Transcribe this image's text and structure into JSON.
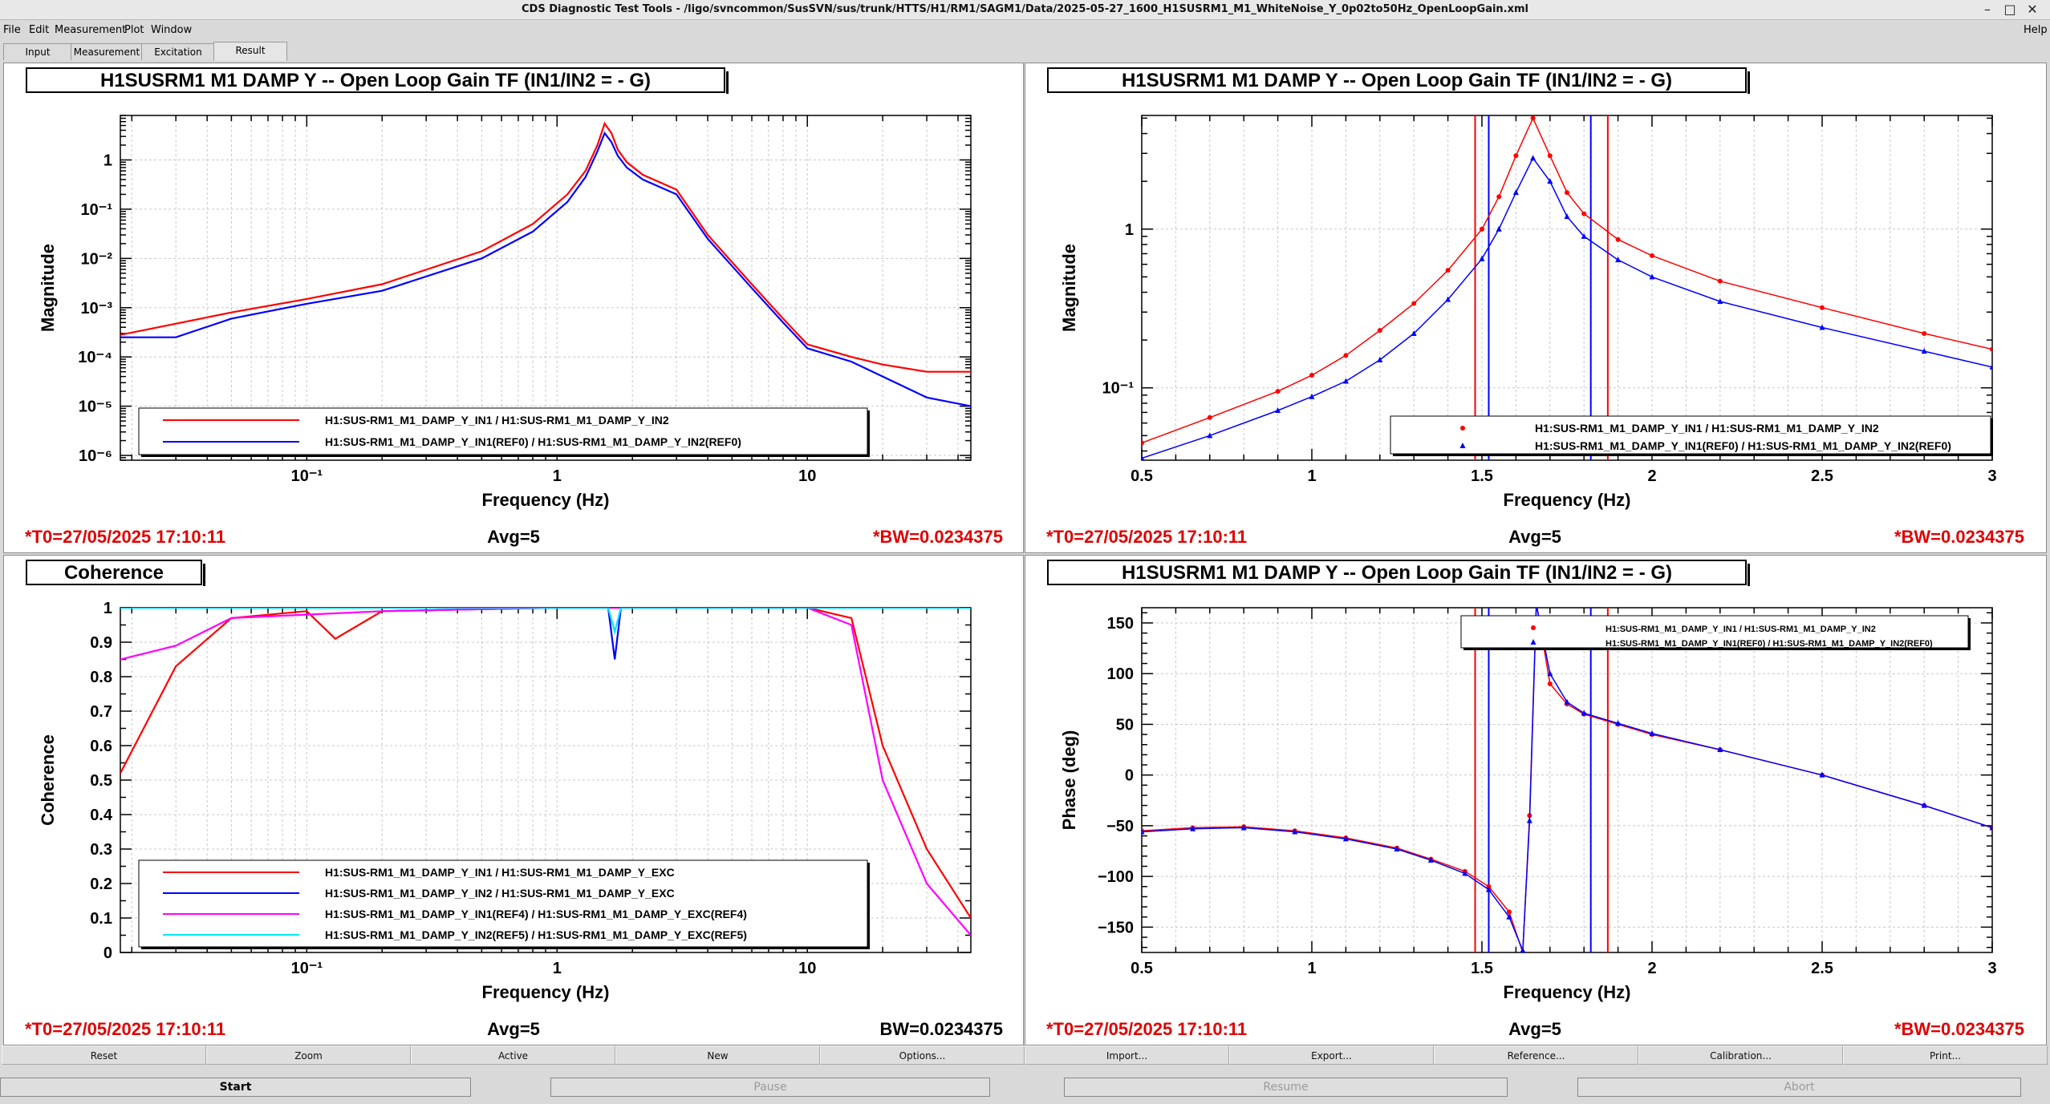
{
  "window": {
    "title": "CDS Diagnostic Test Tools - /ligo/svncommon/SusSVN/sus/trunk/HTTS/H1/RM1/SAGM1/Data/2025-05-27_1600_H1SUSRM1_M1_WhiteNoise_Y_0p02to50Hz_OpenLoopGain.xml",
    "menu_file": "File",
    "menu_edit": "Edit",
    "menu_measurement": "Measurement",
    "menu_plot": "Plot",
    "menu_window": "Window",
    "menu_help": "Help",
    "tab_input": "Input",
    "tab_measurement": "Measurement",
    "tab_excitation": "Excitation",
    "tab_result": "Result"
  },
  "buttons": {
    "reset": "Reset",
    "zoom": "Zoom",
    "active": "Active",
    "new": "New",
    "options": "Options...",
    "import": "Import...",
    "export": "Export...",
    "reference": "Reference...",
    "calibration": "Calibration...",
    "print": "Print...",
    "start": "Start",
    "pause": "Pause",
    "resume": "Resume",
    "abort": "Abort"
  },
  "colors": {
    "red": "#ff0000",
    "blue": "#0000ff",
    "magenta": "#ff00ff",
    "cyan": "#00e6ff",
    "stamp_red": "#e00000"
  },
  "panels": [
    {
      "title": "H1SUSRM1 M1 DAMP Y -- Open Loop Gain TF (IN1/IN2 = - G)",
      "ylabel": "Magnitude",
      "xlabel": "Frequency (Hz)",
      "xticks": [
        "10⁻¹",
        "1",
        "10"
      ],
      "yticks": [
        "1",
        "10⁻¹",
        "10⁻²",
        "10⁻³",
        "10⁻⁴",
        "10⁻⁵",
        "10⁻⁶"
      ],
      "legend": [
        "H1:SUS-RM1_M1_DAMP_Y_IN1 / H1:SUS-RM1_M1_DAMP_Y_IN2",
        "H1:SUS-RM1_M1_DAMP_Y_IN1(REF0) / H1:SUS-RM1_M1_DAMP_Y_IN2(REF0)"
      ],
      "t0": "*T0=27/05/2025 17:10:11",
      "avg": "Avg=5",
      "bw": "*BW=0.0234375"
    },
    {
      "title": "H1SUSRM1 M1 DAMP Y -- Open Loop Gain TF (IN1/IN2 = - G)",
      "ylabel": "Magnitude",
      "xlabel": "Frequency (Hz)",
      "xticks": [
        "0.5",
        "1",
        "1.5",
        "2",
        "2.5",
        "3"
      ],
      "yticks": [
        "1",
        "10⁻¹"
      ],
      "legend": [
        "H1:SUS-RM1_M1_DAMP_Y_IN1 / H1:SUS-RM1_M1_DAMP_Y_IN2",
        "H1:SUS-RM1_M1_DAMP_Y_IN1(REF0) / H1:SUS-RM1_M1_DAMP_Y_IN2(REF0)"
      ],
      "t0": "*T0=27/05/2025 17:10:11",
      "avg": "Avg=5",
      "bw": "*BW=0.0234375"
    },
    {
      "title": "Coherence",
      "ylabel": "Coherence",
      "xlabel": "Frequency (Hz)",
      "xticks": [
        "10⁻¹",
        "1",
        "10"
      ],
      "yticks": [
        "1",
        "0.9",
        "0.8",
        "0.7",
        "0.6",
        "0.5",
        "0.4",
        "0.3",
        "0.2",
        "0.1",
        "0"
      ],
      "legend": [
        "H1:SUS-RM1_M1_DAMP_Y_IN1 / H1:SUS-RM1_M1_DAMP_Y_EXC",
        "H1:SUS-RM1_M1_DAMP_Y_IN2 / H1:SUS-RM1_M1_DAMP_Y_EXC",
        "H1:SUS-RM1_M1_DAMP_Y_IN1(REF4) / H1:SUS-RM1_M1_DAMP_Y_EXC(REF4)",
        "H1:SUS-RM1_M1_DAMP_Y_IN2(REF5) / H1:SUS-RM1_M1_DAMP_Y_EXC(REF5)"
      ],
      "t0": "*T0=27/05/2025 17:10:11",
      "avg": "Avg=5",
      "bw": "BW=0.0234375"
    },
    {
      "title": "H1SUSRM1 M1 DAMP Y -- Open Loop Gain TF (IN1/IN2 = - G)",
      "ylabel": "Phase (deg)",
      "xlabel": "Frequency (Hz)",
      "xticks": [
        "0.5",
        "1",
        "1.5",
        "2",
        "2.5",
        "3"
      ],
      "yticks": [
        "150",
        "100",
        "50",
        "0",
        "−50",
        "−100",
        "−150"
      ],
      "legend": [
        "H1:SUS-RM1_M1_DAMP_Y_IN1 / H1:SUS-RM1_M1_DAMP_Y_IN2",
        "H1:SUS-RM1_M1_DAMP_Y_IN1(REF0) / H1:SUS-RM1_M1_DAMP_Y_IN2(REF0)"
      ],
      "t0": "*T0=27/05/2025 17:10:11",
      "avg": "Avg=5",
      "bw": "*BW=0.0234375"
    }
  ],
  "chart_data": [
    {
      "type": "line",
      "xscale": "log",
      "yscale": "log",
      "title": "H1SUSRM1 M1 DAMP Y -- Open Loop Gain TF (IN1/IN2 = - G)",
      "xlabel": "Frequency (Hz)",
      "ylabel": "Magnitude",
      "xlim": [
        0.018,
        45
      ],
      "ylim": [
        8e-07,
        8
      ],
      "grid": true,
      "legend_position": "bottom-left",
      "series": [
        {
          "name": "H1:SUS-RM1_M1_DAMP_Y_IN1 / H1:SUS-RM1_M1_DAMP_Y_IN2",
          "color": "#ff0000",
          "x": [
            0.018,
            0.05,
            0.1,
            0.2,
            0.5,
            0.8,
            1.1,
            1.3,
            1.45,
            1.55,
            1.65,
            1.75,
            1.9,
            2.2,
            3,
            4,
            6,
            8,
            10,
            15,
            20,
            30,
            45
          ],
          "y": [
            0.00028,
            0.0008,
            0.0015,
            0.003,
            0.014,
            0.05,
            0.2,
            0.6,
            2.0,
            5.5,
            3.5,
            1.6,
            0.9,
            0.5,
            0.25,
            0.03,
            0.003,
            0.0006,
            0.00018,
            0.0001,
            7e-05,
            5e-05,
            5e-05
          ]
        },
        {
          "name": "H1:SUS-RM1_M1_DAMP_Y_IN1(REF0) / H1:SUS-RM1_M1_DAMP_Y_IN2(REF0)",
          "color": "#0000ff",
          "x": [
            0.018,
            0.03,
            0.05,
            0.1,
            0.2,
            0.5,
            0.8,
            1.1,
            1.3,
            1.45,
            1.55,
            1.65,
            1.75,
            1.9,
            2.2,
            3,
            4,
            6,
            8,
            10,
            15,
            20,
            30,
            45
          ],
          "y": [
            0.00025,
            0.00025,
            0.0006,
            0.0012,
            0.0022,
            0.01,
            0.035,
            0.14,
            0.45,
            1.5,
            3.5,
            2.3,
            1.2,
            0.7,
            0.4,
            0.2,
            0.025,
            0.0025,
            0.0005,
            0.00015,
            8e-05,
            4e-05,
            1.5e-05,
            1e-05
          ]
        }
      ]
    },
    {
      "type": "scatter",
      "xscale": "linear",
      "yscale": "log",
      "title": "H1SUSRM1 M1 DAMP Y -- Open Loop Gain TF (IN1/IN2 = - G)",
      "xlabel": "Frequency (Hz)",
      "ylabel": "Magnitude",
      "xlim": [
        0.5,
        3
      ],
      "ylim": [
        0.035,
        5.2
      ],
      "grid": true,
      "legend_position": "bottom-right",
      "cursors": [
        {
          "x": 1.48,
          "color": "#ff0000"
        },
        {
          "x": 1.52,
          "color": "#0000ff"
        },
        {
          "x": 1.82,
          "color": "#0000ff"
        },
        {
          "x": 1.87,
          "color": "#ff0000"
        }
      ],
      "series": [
        {
          "name": "H1:SUS-RM1_M1_DAMP_Y_IN1 / H1:SUS-RM1_M1_DAMP_Y_IN2",
          "color": "#ff0000",
          "marker": "circle",
          "x": [
            0.5,
            0.7,
            0.9,
            1.0,
            1.1,
            1.2,
            1.3,
            1.4,
            1.5,
            1.55,
            1.6,
            1.65,
            1.7,
            1.75,
            1.8,
            1.9,
            2.0,
            2.2,
            2.5,
            2.8,
            3.0
          ],
          "y": [
            0.045,
            0.065,
            0.095,
            0.12,
            0.16,
            0.23,
            0.34,
            0.55,
            1.0,
            1.6,
            2.9,
            5.0,
            2.9,
            1.7,
            1.25,
            0.86,
            0.68,
            0.47,
            0.32,
            0.22,
            0.175
          ]
        },
        {
          "name": "H1:SUS-RM1_M1_DAMP_Y_IN1(REF0) / H1:SUS-RM1_M1_DAMP_Y_IN2(REF0)",
          "color": "#0000ff",
          "marker": "triangle",
          "x": [
            0.5,
            0.7,
            0.9,
            1.0,
            1.1,
            1.2,
            1.3,
            1.4,
            1.5,
            1.55,
            1.6,
            1.65,
            1.7,
            1.75,
            1.8,
            1.9,
            2.0,
            2.2,
            2.5,
            2.8,
            3.0
          ],
          "y": [
            0.036,
            0.05,
            0.072,
            0.088,
            0.11,
            0.15,
            0.22,
            0.36,
            0.65,
            1.0,
            1.7,
            2.8,
            2.0,
            1.2,
            0.9,
            0.64,
            0.5,
            0.35,
            0.24,
            0.17,
            0.135
          ]
        }
      ]
    },
    {
      "type": "line",
      "xscale": "log",
      "yscale": "linear",
      "title": "Coherence",
      "xlabel": "Frequency (Hz)",
      "ylabel": "Coherence",
      "xlim": [
        0.018,
        45
      ],
      "ylim": [
        0,
        1
      ],
      "grid": true,
      "legend_position": "bottom-left",
      "series": [
        {
          "name": "H1:SUS-RM1_M1_DAMP_Y_IN1 / H1:SUS-RM1_M1_DAMP_Y_EXC",
          "color": "#ff0000",
          "x": [
            0.018,
            0.03,
            0.05,
            0.1,
            0.13,
            0.2,
            1,
            10,
            15,
            20,
            30,
            45
          ],
          "y": [
            0.52,
            0.83,
            0.97,
            0.99,
            0.91,
            0.99,
            1.0,
            1.0,
            0.97,
            0.6,
            0.3,
            0.1
          ]
        },
        {
          "name": "H1:SUS-RM1_M1_DAMP_Y_IN2 / H1:SUS-RM1_M1_DAMP_Y_EXC",
          "color": "#0000ff",
          "x": [
            0.018,
            1.6,
            1.7,
            1.8,
            45
          ],
          "y": [
            1.0,
            1.0,
            0.85,
            1.0,
            1.0
          ]
        },
        {
          "name": "H1:SUS-RM1_M1_DAMP_Y_IN1(REF4) / H1:SUS-RM1_M1_DAMP_Y_EXC(REF4)",
          "color": "#ff00ff",
          "x": [
            0.018,
            0.03,
            0.05,
            0.1,
            0.2,
            1,
            10,
            15,
            20,
            30,
            45
          ],
          "y": [
            0.85,
            0.89,
            0.97,
            0.98,
            0.99,
            1.0,
            1.0,
            0.95,
            0.5,
            0.2,
            0.05
          ]
        },
        {
          "name": "H1:SUS-RM1_M1_DAMP_Y_IN2(REF5) / H1:SUS-RM1_M1_DAMP_Y_EXC(REF5)",
          "color": "#00e6ff",
          "x": [
            0.018,
            1.6,
            1.7,
            1.8,
            45
          ],
          "y": [
            1.0,
            1.0,
            0.93,
            1.0,
            1.0
          ]
        }
      ]
    },
    {
      "type": "scatter",
      "xscale": "linear",
      "yscale": "linear",
      "title": "H1SUSRM1 M1 DAMP Y -- Open Loop Gain TF (IN1/IN2 = - G)",
      "xlabel": "Frequency (Hz)",
      "ylabel": "Phase (deg)",
      "xlim": [
        0.5,
        3
      ],
      "ylim": [
        -175,
        165
      ],
      "grid": true,
      "legend_position": "top-right",
      "cursors": [
        {
          "x": 1.48,
          "color": "#ff0000"
        },
        {
          "x": 1.52,
          "color": "#0000ff"
        },
        {
          "x": 1.82,
          "color": "#0000ff"
        },
        {
          "x": 1.87,
          "color": "#ff0000"
        }
      ],
      "series": [
        {
          "name": "H1:SUS-RM1_M1_DAMP_Y_IN1 / H1:SUS-RM1_M1_DAMP_Y_IN2",
          "color": "#ff0000",
          "marker": "circle",
          "x": [
            0.5,
            0.65,
            0.8,
            0.95,
            1.1,
            1.25,
            1.35,
            1.45,
            1.52,
            1.58,
            1.62,
            1.64,
            1.66,
            1.7,
            1.75,
            1.8,
            1.9,
            2.0,
            2.2,
            2.5,
            2.8,
            3.0
          ],
          "y": [
            -55,
            -52,
            -51,
            -55,
            -62,
            -72,
            -83,
            -95,
            -110,
            -135,
            -175,
            -40,
            170,
            90,
            70,
            60,
            50,
            40,
            25,
            0,
            -30,
            -52
          ]
        },
        {
          "name": "H1:SUS-RM1_M1_DAMP_Y_IN1(REF0) / H1:SUS-RM1_M1_DAMP_Y_IN2(REF0)",
          "color": "#0000ff",
          "marker": "triangle",
          "x": [
            0.5,
            0.65,
            0.8,
            0.95,
            1.1,
            1.25,
            1.35,
            1.45,
            1.52,
            1.58,
            1.62,
            1.64,
            1.66,
            1.7,
            1.75,
            1.8,
            1.9,
            2.0,
            2.2,
            2.5,
            2.8,
            3.0
          ],
          "y": [
            -56,
            -53,
            -52,
            -56,
            -63,
            -73,
            -84,
            -97,
            -113,
            -140,
            -173,
            -45,
            168,
            100,
            72,
            61,
            51,
            41,
            25,
            0,
            -30,
            -52
          ]
        }
      ]
    }
  ]
}
